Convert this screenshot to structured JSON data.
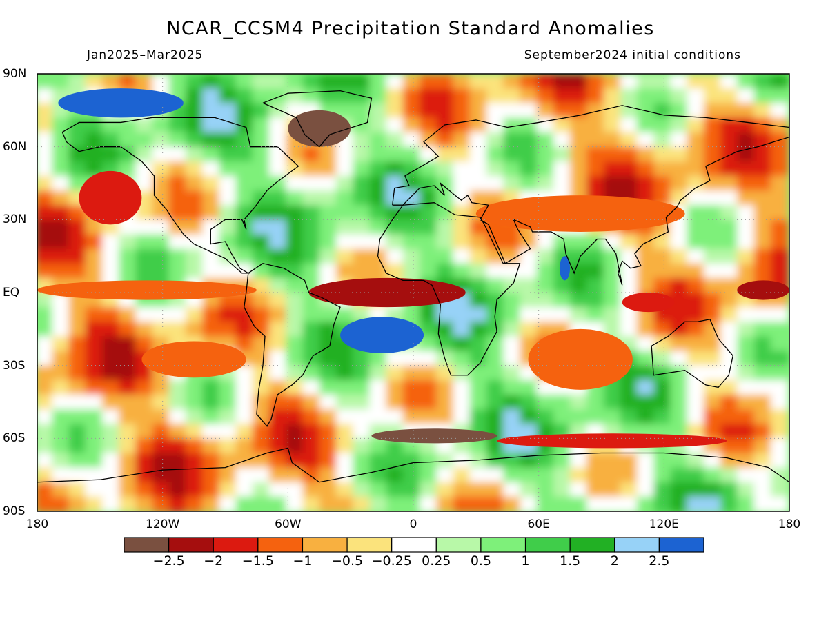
{
  "title": "NCAR_CCSM4 Precipitation Standard Anomalies",
  "period": "Jan2025–Mar2025",
  "initial_conditions": "September2024 initial conditions",
  "lat_labels": [
    "90N",
    "60N",
    "30N",
    "EQ",
    "30S",
    "60S",
    "90S"
  ],
  "lon_labels": [
    "180",
    "120W",
    "60W",
    "0",
    "60E",
    "120E",
    "180"
  ],
  "colorbar": {
    "colors": [
      "#7a5040",
      "#a50e0e",
      "#dc1a10",
      "#f5620f",
      "#f8b040",
      "#fbe37c",
      "#ffffff",
      "#b8f8a8",
      "#7ef07a",
      "#40cd4a",
      "#22b024",
      "#97d2f7",
      "#1c63d2"
    ],
    "labels": [
      "−2.5",
      "−2",
      "−1.5",
      "−1",
      "−0.5",
      "−0.25",
      "0.25",
      "0.5",
      "1",
      "1.5",
      "2",
      "2.5"
    ]
  },
  "map": {
    "lat_range": [
      -90,
      90
    ],
    "lon_range": [
      -180,
      180
    ],
    "grid_lines": "dotted at 30 deg",
    "features": [
      {
        "name": "equatorial-pacific-dry-band",
        "lon": [
          -180,
          -75
        ],
        "lat": [
          -3,
          5
        ],
        "value": -1.4
      },
      {
        "name": "equatorial-atlantic-dry-band",
        "lon": [
          -50,
          25
        ],
        "lat": [
          -6,
          6
        ],
        "value": -2.3
      },
      {
        "name": "west-pacific-dry",
        "lon": [
          155,
          180
        ],
        "lat": [
          -3,
          5
        ],
        "value": -2.0
      },
      {
        "name": "indonesia-dry",
        "lon": [
          100,
          125
        ],
        "lat": [
          -8,
          0
        ],
        "value": -1.5
      },
      {
        "name": "south-atlantic-wet",
        "lon": [
          -35,
          5
        ],
        "lat": [
          -25,
          -10
        ],
        "value": 2.6
      },
      {
        "name": "arabian-sea-wet",
        "lon": [
          70,
          75
        ],
        "lat": [
          5,
          15
        ],
        "value": 2.6
      },
      {
        "name": "arctic-canada-wet",
        "lon": [
          -170,
          -110
        ],
        "lat": [
          72,
          84
        ],
        "value": 2.6
      },
      {
        "name": "southern-ocean-dry-band",
        "lon": [
          -20,
          40
        ],
        "lat": [
          -62,
          -56
        ],
        "value": -2.6
      },
      {
        "name": "southern-ocean-dry-east",
        "lon": [
          40,
          150
        ],
        "lat": [
          -64,
          -58
        ],
        "value": -1.8
      },
      {
        "name": "north-pacific-dry",
        "lon": [
          -160,
          -130
        ],
        "lat": [
          28,
          50
        ],
        "value": -1.7
      },
      {
        "name": "sw-asia-dry",
        "lon": [
          30,
          130
        ],
        "lat": [
          25,
          40
        ],
        "value": -1.2
      },
      {
        "name": "indian-ocean-south-dry",
        "lon": [
          55,
          105
        ],
        "lat": [
          -40,
          -15
        ],
        "value": -1.1
      },
      {
        "name": "southeast-pacific-dry",
        "lon": [
          -130,
          -80
        ],
        "lat": [
          -35,
          -20
        ],
        "value": -1.2
      },
      {
        "name": "greenland-dry",
        "lon": [
          -60,
          -30
        ],
        "lat": [
          60,
          75
        ],
        "value": -2.6
      }
    ]
  }
}
